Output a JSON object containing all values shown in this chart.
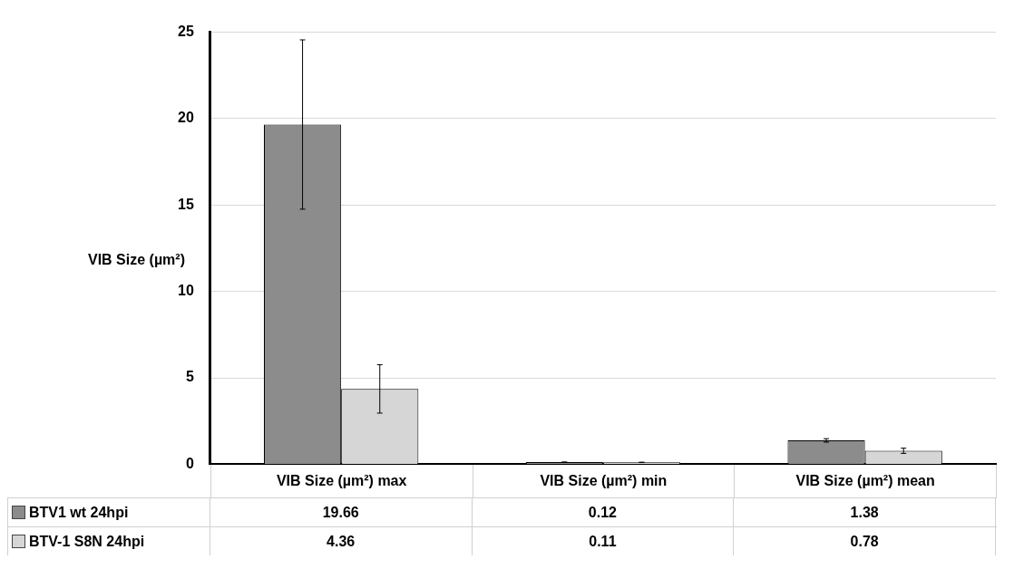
{
  "chart_data": {
    "type": "bar",
    "ylabel": "VIB Size (µm²)",
    "categories": [
      "VIB Size (µm²) max",
      "VIB Size (µm²) min",
      "VIB Size (µm²) mean"
    ],
    "series": [
      {
        "name": "BTV1 wt 24hpi",
        "color": "#8c8c8c",
        "values": [
          19.66,
          0.12,
          1.38
        ],
        "errors": [
          4.9,
          0.01,
          0.1
        ]
      },
      {
        "name": "BTV-1 S8N 24hpi",
        "color": "#d6d6d6",
        "values": [
          4.36,
          0.11,
          0.78
        ],
        "errors": [
          1.4,
          0.01,
          0.15
        ]
      }
    ],
    "ylim": [
      0,
      25
    ],
    "yticks": [
      0,
      5,
      10,
      15,
      20,
      25
    ],
    "grid": "y",
    "legend": "bottom",
    "data_labels": true
  }
}
